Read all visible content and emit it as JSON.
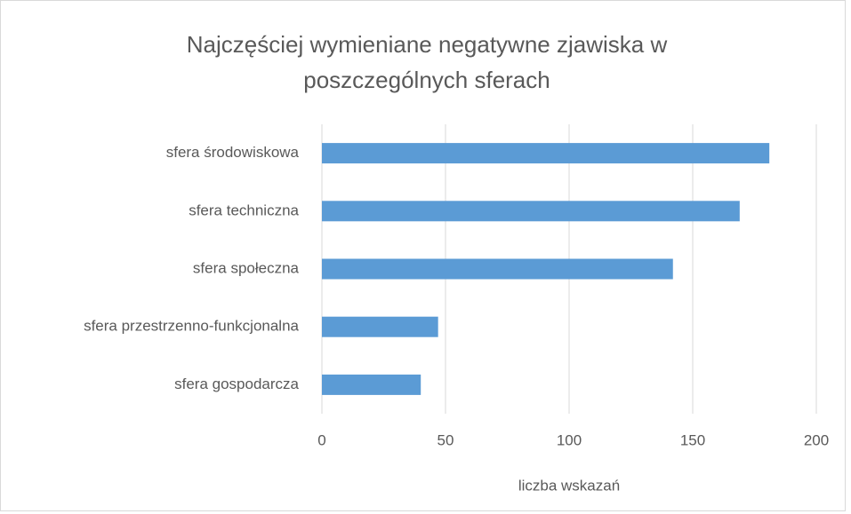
{
  "chart_data": {
    "type": "bar",
    "orientation": "horizontal",
    "title": "Najczęściej wymieniane negatywne zjawiska w poszczególnych sferach",
    "categories": [
      "sfera środowiskowa",
      "sfera techniczna",
      "sfera społeczna",
      "sfera przestrzenno-funkcjonalna",
      "sfera gospodarcza"
    ],
    "values": [
      181,
      169,
      142,
      47,
      40
    ],
    "color": "#5b9bd5",
    "xlabel": "liczba wskazań",
    "xlim": [
      0,
      200
    ],
    "xticks": [
      0,
      50,
      100,
      150,
      200
    ],
    "grid": true
  }
}
